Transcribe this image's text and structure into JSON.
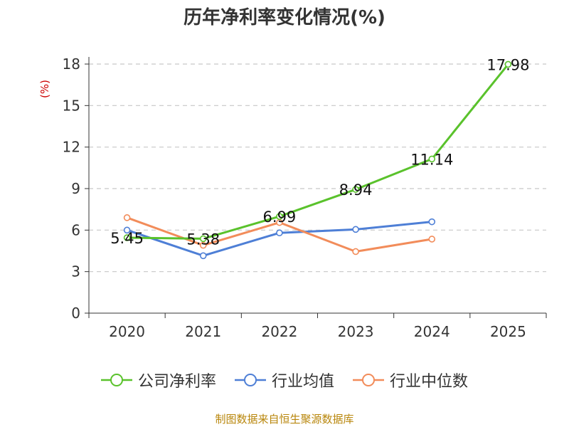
{
  "chart_data": {
    "type": "line",
    "title": "历年净利率变化情况(%)",
    "ylabel": "(%)",
    "xlabel": "",
    "categories": [
      "2020",
      "2021",
      "2022",
      "2023",
      "2024",
      "2025"
    ],
    "ylim": [
      0,
      18
    ],
    "yticks": [
      0,
      3,
      6,
      9,
      12,
      15,
      18
    ],
    "grid": true,
    "legend_position": "bottom",
    "series": [
      {
        "name": "公司净利率",
        "color": "#5ac22c",
        "values": [
          5.45,
          5.38,
          6.99,
          8.94,
          11.14,
          17.98
        ],
        "show_labels": true
      },
      {
        "name": "行业均值",
        "color": "#4e7fd6",
        "values": [
          6.0,
          4.15,
          5.8,
          6.05,
          6.6,
          null
        ],
        "show_labels": false
      },
      {
        "name": "行业中位数",
        "color": "#f28c5a",
        "values": [
          6.9,
          4.9,
          6.55,
          4.45,
          5.35,
          null
        ],
        "show_labels": false
      }
    ]
  },
  "source": "制图数据来自恒生聚源数据库"
}
